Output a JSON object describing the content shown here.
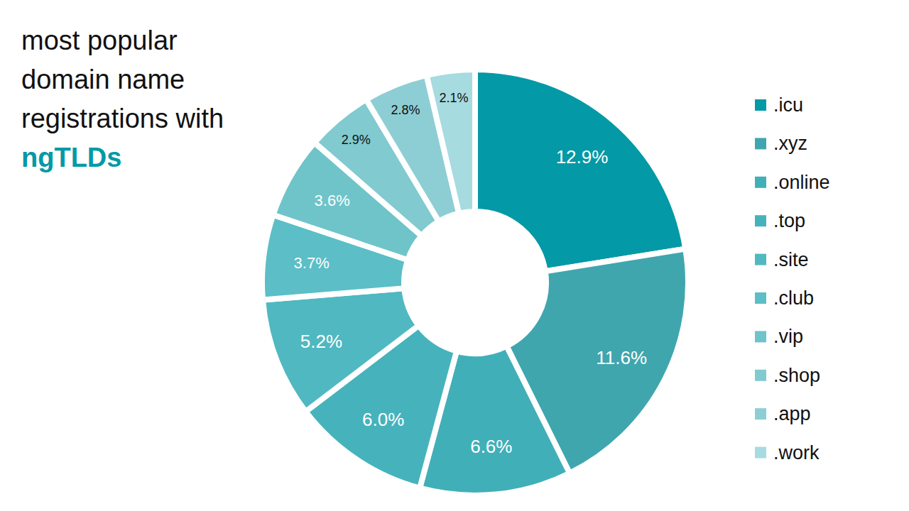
{
  "chart_data": {
    "type": "donut",
    "title": "most popular domain name registrations with ngTLDs",
    "categories": [
      ".icu",
      ".xyz",
      ".online",
      ".top",
      ".site",
      ".club",
      ".vip",
      ".shop",
      ".app",
      ".work"
    ],
    "values": [
      12.9,
      11.6,
      6.6,
      6.0,
      5.2,
      3.7,
      3.6,
      2.9,
      2.8,
      2.1
    ],
    "value_labels": [
      "12.9%",
      "11.6%",
      "6.6%",
      "6.0%",
      "5.2%",
      "3.7%",
      "3.6%",
      "2.9%",
      "2.8%",
      "2.1%"
    ],
    "colors": [
      "#0399a6",
      "#40a6ae",
      "#41afb8",
      "#46b3bc",
      "#50b8c0",
      "#5cbec6",
      "#6fc4ca",
      "#80cad0",
      "#8dced4",
      "#a6dbe0"
    ],
    "data_labels": true,
    "legend": "right",
    "tick_labels": false
  }
}
